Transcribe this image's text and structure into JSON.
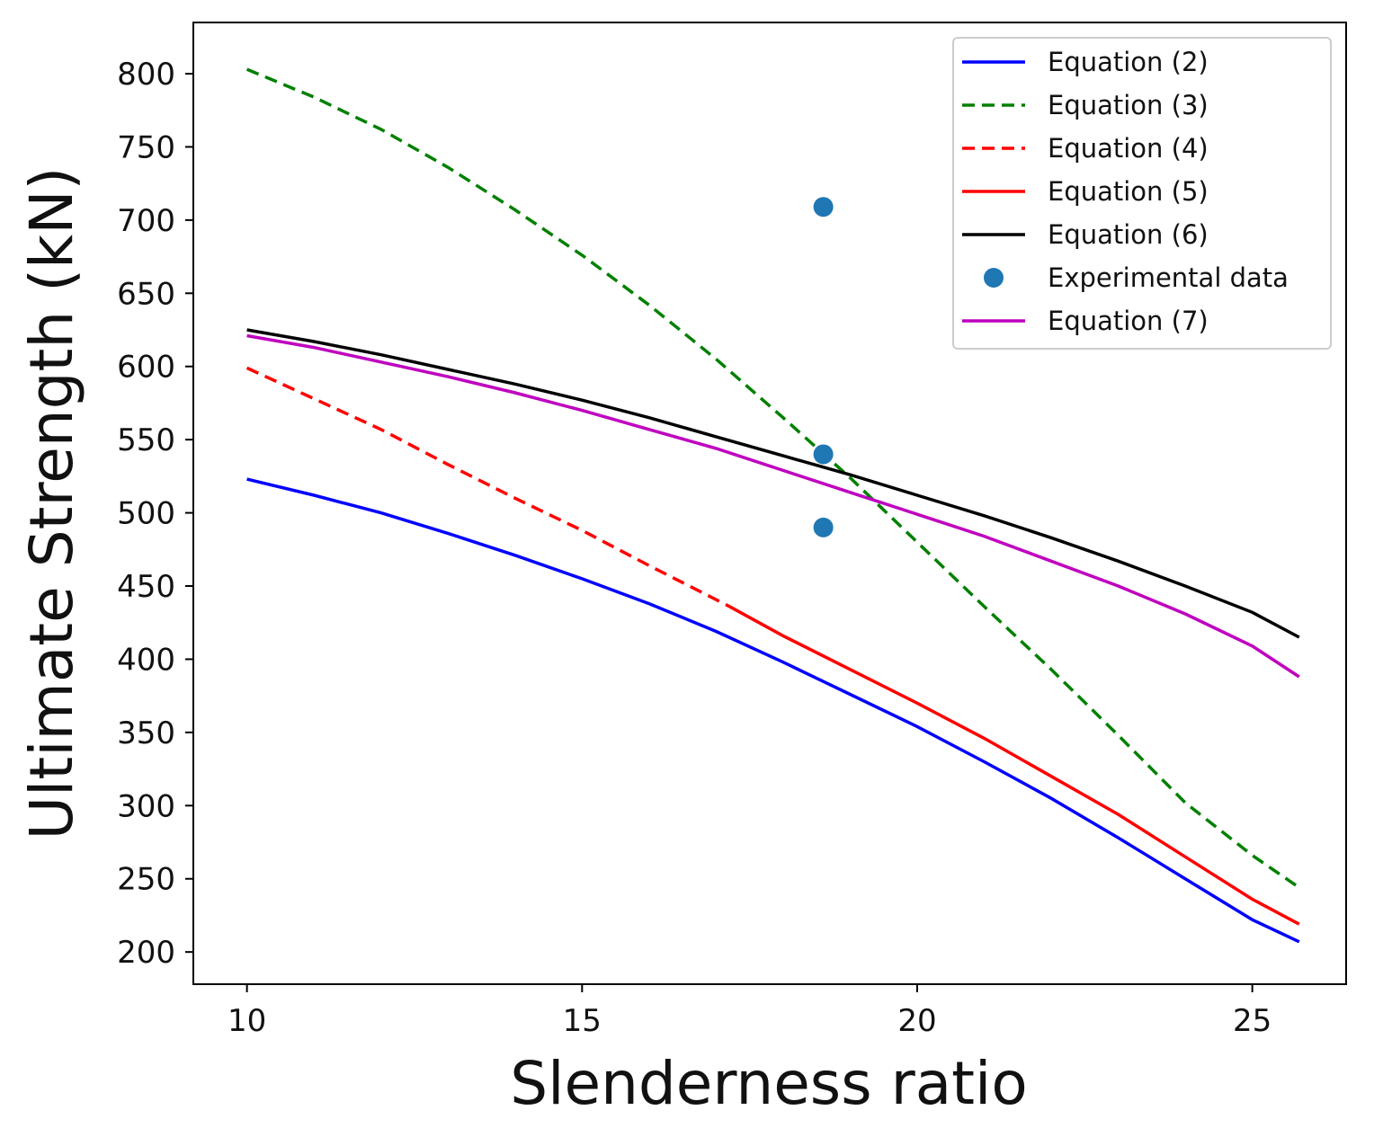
{
  "chart_data": {
    "type": "line",
    "title": "",
    "xlabel": "Slenderness ratio",
    "ylabel": "Ultimate Strength (kN)",
    "xlim": [
      9.2,
      26.4
    ],
    "ylim": [
      178,
      835
    ],
    "xticks": [
      10,
      15,
      20,
      25
    ],
    "yticks": [
      200,
      250,
      300,
      350,
      400,
      450,
      500,
      550,
      600,
      650,
      700,
      750,
      800
    ],
    "grid": false,
    "legend_position": "top-right",
    "series": [
      {
        "name": "Equation (2)",
        "color": "#0000ff",
        "dash": "solid",
        "x": [
          10,
          11,
          12,
          13,
          14,
          15,
          16,
          17,
          18,
          19,
          20,
          21,
          22,
          23,
          24,
          25,
          25.7
        ],
        "y": [
          523,
          512,
          500,
          486,
          471,
          455,
          438,
          419,
          398,
          376,
          354,
          330,
          305,
          278,
          250,
          222,
          207
        ]
      },
      {
        "name": "Equation (3)",
        "color": "#008000",
        "dash": "dashed",
        "x": [
          10,
          11,
          12,
          13,
          14,
          15,
          16,
          17,
          18,
          19,
          20,
          21,
          22,
          23,
          24,
          25,
          25.7
        ],
        "y": [
          803,
          784,
          762,
          736,
          707,
          676,
          642,
          605,
          565,
          524,
          480,
          436,
          393,
          348,
          302,
          266,
          244
        ]
      },
      {
        "name": "Equation (4)",
        "color": "#ff0000",
        "dash": "dashed",
        "x": [
          10,
          11,
          12,
          13,
          14,
          15,
          16,
          17.2
        ],
        "y": [
          599,
          578,
          557,
          533,
          510,
          488,
          464,
          436
        ]
      },
      {
        "name": "Equation (5)",
        "color": "#ff0000",
        "dash": "solid",
        "x": [
          17.2,
          18,
          19,
          20,
          21,
          22,
          23,
          24,
          25,
          25.7
        ],
        "y": [
          436,
          416,
          393,
          370,
          346,
          320,
          294,
          265,
          236,
          219
        ]
      },
      {
        "name": "Equation (6)",
        "color": "#000000",
        "dash": "solid",
        "x": [
          10,
          11,
          12,
          13,
          14,
          15,
          16,
          17,
          18,
          19,
          20,
          21,
          22,
          23,
          24,
          25,
          25.7
        ],
        "y": [
          625,
          617,
          608,
          598,
          588,
          577,
          565,
          552,
          539,
          526,
          512,
          498,
          483,
          467,
          450,
          432,
          415
        ]
      },
      {
        "name": "Experimental data",
        "color": "#1f77b4",
        "dash": "none",
        "marker": "circle",
        "x": [
          18.6,
          18.6,
          18.6
        ],
        "y": [
          709,
          540,
          490
        ]
      },
      {
        "name": "Equation (7)",
        "color": "#bf00bf",
        "dash": "solid",
        "x": [
          10,
          11,
          12,
          13,
          14,
          15,
          16,
          17,
          18,
          19,
          20,
          21,
          22,
          23,
          24,
          25,
          25.7
        ],
        "y": [
          621,
          613,
          603,
          593,
          582,
          570,
          557,
          544,
          529,
          514,
          499,
          484,
          467,
          450,
          431,
          409,
          388
        ]
      }
    ]
  }
}
